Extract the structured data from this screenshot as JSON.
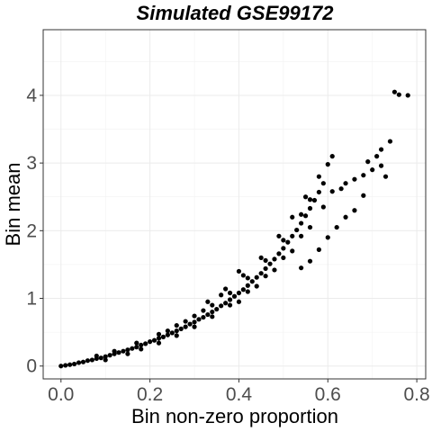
{
  "chart_data": {
    "type": "scatter",
    "title": "Simulated GSE99172",
    "xlabel": "Bin non-zero proportion",
    "ylabel": "Bin mean",
    "xlim": [
      -0.04,
      0.82
    ],
    "ylim": [
      -0.19,
      4.97
    ],
    "x_ticks": [
      0.0,
      0.2,
      0.4,
      0.6,
      0.8
    ],
    "x_tick_labels": [
      "0.0",
      "0.2",
      "0.4",
      "0.6",
      "0.8"
    ],
    "y_ticks": [
      0,
      1,
      2,
      3,
      4
    ],
    "y_tick_labels": [
      "0",
      "1",
      "2",
      "3",
      "4"
    ],
    "grid": true,
    "point_color": "#000000",
    "points": [
      [
        0.0,
        0.0
      ],
      [
        0.01,
        0.01
      ],
      [
        0.02,
        0.02
      ],
      [
        0.03,
        0.03
      ],
      [
        0.04,
        0.05
      ],
      [
        0.05,
        0.06
      ],
      [
        0.06,
        0.08
      ],
      [
        0.07,
        0.09
      ],
      [
        0.08,
        0.11
      ],
      [
        0.09,
        0.12
      ],
      [
        0.1,
        0.14
      ],
      [
        0.11,
        0.16
      ],
      [
        0.12,
        0.18
      ],
      [
        0.13,
        0.2
      ],
      [
        0.14,
        0.22
      ],
      [
        0.15,
        0.24
      ],
      [
        0.16,
        0.26
      ],
      [
        0.17,
        0.28
      ],
      [
        0.18,
        0.31
      ],
      [
        0.19,
        0.33
      ],
      [
        0.2,
        0.36
      ],
      [
        0.21,
        0.38
      ],
      [
        0.22,
        0.41
      ],
      [
        0.23,
        0.43
      ],
      [
        0.24,
        0.46
      ],
      [
        0.25,
        0.49
      ],
      [
        0.26,
        0.52
      ],
      [
        0.27,
        0.55
      ],
      [
        0.28,
        0.58
      ],
      [
        0.29,
        0.62
      ],
      [
        0.3,
        0.65
      ],
      [
        0.31,
        0.69
      ],
      [
        0.32,
        0.72
      ],
      [
        0.33,
        0.76
      ],
      [
        0.34,
        0.8
      ],
      [
        0.35,
        0.84
      ],
      [
        0.36,
        0.89
      ],
      [
        0.37,
        0.93
      ],
      [
        0.38,
        0.98
      ],
      [
        0.39,
        1.03
      ],
      [
        0.4,
        1.08
      ],
      [
        0.41,
        1.13
      ],
      [
        0.42,
        1.19
      ],
      [
        0.43,
        1.25
      ],
      [
        0.44,
        1.31
      ],
      [
        0.45,
        1.37
      ],
      [
        0.46,
        1.44
      ],
      [
        0.47,
        1.51
      ],
      [
        0.48,
        1.58
      ],
      [
        0.49,
        1.66
      ],
      [
        0.5,
        1.74
      ],
      [
        0.51,
        1.83
      ],
      [
        0.52,
        1.92
      ],
      [
        0.53,
        2.01
      ],
      [
        0.54,
        2.11
      ],
      [
        0.55,
        2.22
      ],
      [
        0.56,
        2.33
      ],
      [
        0.57,
        2.45
      ],
      [
        0.58,
        2.57
      ],
      [
        0.59,
        2.7
      ],
      [
        0.18,
        0.25
      ],
      [
        0.22,
        0.34
      ],
      [
        0.26,
        0.45
      ],
      [
        0.3,
        0.58
      ],
      [
        0.34,
        0.73
      ],
      [
        0.38,
        0.9
      ],
      [
        0.42,
        1.1
      ],
      [
        0.46,
        1.33
      ],
      [
        0.5,
        1.6
      ],
      [
        0.54,
        1.92
      ],
      [
        0.22,
        0.47
      ],
      [
        0.26,
        0.6
      ],
      [
        0.3,
        0.74
      ],
      [
        0.34,
        0.9
      ],
      [
        0.38,
        1.08
      ],
      [
        0.42,
        1.3
      ],
      [
        0.46,
        1.56
      ],
      [
        0.5,
        1.86
      ],
      [
        0.54,
        2.24
      ],
      [
        0.56,
        2.46
      ],
      [
        0.33,
        0.95
      ],
      [
        0.37,
        1.14
      ],
      [
        0.41,
        1.34
      ],
      [
        0.45,
        1.6
      ],
      [
        0.49,
        1.92
      ],
      [
        0.52,
        2.2
      ],
      [
        0.55,
        2.5
      ],
      [
        0.58,
        2.8
      ],
      [
        0.6,
        2.98
      ],
      [
        0.61,
        3.1
      ],
      [
        0.4,
        0.95
      ],
      [
        0.44,
        1.18
      ],
      [
        0.48,
        1.42
      ],
      [
        0.52,
        1.7
      ],
      [
        0.56,
        2.05
      ],
      [
        0.59,
        2.35
      ],
      [
        0.61,
        2.58
      ],
      [
        0.63,
        2.62
      ],
      [
        0.64,
        2.7
      ],
      [
        0.66,
        2.76
      ],
      [
        0.68,
        2.82
      ],
      [
        0.69,
        3.02
      ],
      [
        0.7,
        2.9
      ],
      [
        0.71,
        3.1
      ],
      [
        0.72,
        3.2
      ],
      [
        0.73,
        2.8
      ],
      [
        0.72,
        2.96
      ],
      [
        0.66,
        2.3
      ],
      [
        0.68,
        2.52
      ],
      [
        0.64,
        2.2
      ],
      [
        0.56,
        1.55
      ],
      [
        0.58,
        1.72
      ],
      [
        0.6,
        1.9
      ],
      [
        0.62,
        2.05
      ],
      [
        0.54,
        1.45
      ],
      [
        0.4,
        1.4
      ],
      [
        0.36,
        1.05
      ],
      [
        0.32,
        0.82
      ],
      [
        0.28,
        0.66
      ],
      [
        0.24,
        0.52
      ],
      [
        0.08,
        0.15
      ],
      [
        0.1,
        0.09
      ],
      [
        0.12,
        0.22
      ],
      [
        0.15,
        0.18
      ],
      [
        0.17,
        0.34
      ],
      [
        0.74,
        3.32
      ],
      [
        0.75,
        4.05
      ],
      [
        0.76,
        4.01
      ],
      [
        0.78,
        4.0
      ]
    ]
  }
}
